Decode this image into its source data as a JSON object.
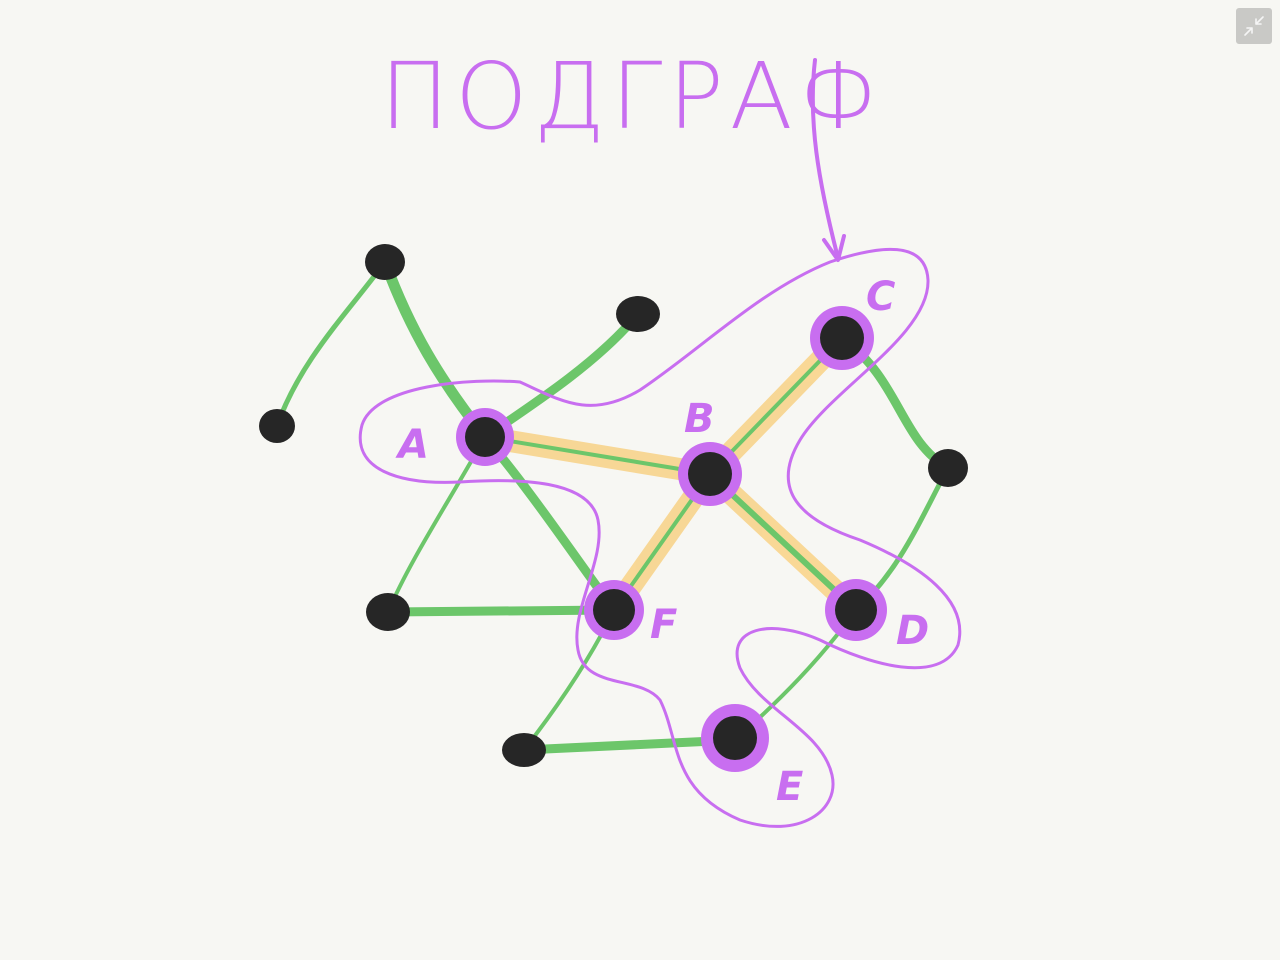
{
  "title": "ПОДГРАФ",
  "colors": {
    "background": "#f7f7f3",
    "edge": "#6cc66a",
    "highlight": "#f8d48c",
    "subgraph": "#c86ef0",
    "node": "#262626"
  },
  "labels": {
    "A": "A",
    "B": "B",
    "C": "C",
    "D": "D",
    "E": "E",
    "F": "F"
  },
  "toolbar": {
    "collapse_icon": "collapse-arrows-icon"
  }
}
